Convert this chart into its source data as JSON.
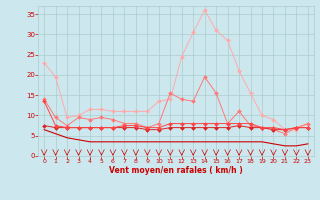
{
  "x": [
    0,
    1,
    2,
    3,
    4,
    5,
    6,
    7,
    8,
    9,
    10,
    11,
    12,
    13,
    14,
    15,
    16,
    17,
    18,
    19,
    20,
    21,
    22,
    23
  ],
  "series": [
    {
      "color": "#ffaaaa",
      "linewidth": 0.7,
      "markersize": 2.0,
      "values": [
        23,
        19.5,
        9.5,
        10,
        11.5,
        11.5,
        11,
        11,
        11,
        11,
        13.5,
        14,
        24.5,
        30.5,
        36,
        31,
        28.5,
        21,
        15.5,
        10,
        9,
        6.5,
        6.5,
        8
      ]
    },
    {
      "color": "#ff7777",
      "linewidth": 0.7,
      "markersize": 2.0,
      "values": [
        14,
        9.5,
        7.5,
        9.5,
        9,
        9.5,
        9,
        8,
        8,
        7,
        8,
        15.5,
        14,
        13.5,
        19.5,
        15.5,
        8,
        11,
        7.5,
        7,
        6.5,
        5.5,
        7,
        8
      ]
    },
    {
      "color": "#dd2222",
      "linewidth": 0.7,
      "markersize": 2.0,
      "values": [
        7.5,
        7,
        7,
        7,
        7,
        7,
        7,
        7,
        7,
        6.5,
        6.5,
        7,
        7,
        7,
        7,
        7,
        7,
        7.5,
        7,
        7,
        6.5,
        6.5,
        7,
        7
      ]
    },
    {
      "color": "#ff4444",
      "linewidth": 0.7,
      "markersize": 2.0,
      "values": [
        13.5,
        7.5,
        7,
        7,
        7,
        7,
        7,
        7.5,
        7.5,
        7,
        7,
        8,
        8,
        8,
        8,
        8,
        8,
        8,
        8,
        7,
        7,
        6.5,
        7,
        7
      ]
    },
    {
      "color": "#cc0000",
      "linewidth": 0.8,
      "markersize": 0,
      "values": [
        6.5,
        5.5,
        4.5,
        4,
        3.5,
        3.5,
        3.5,
        3.5,
        3.5,
        3.5,
        3.5,
        3.5,
        3.5,
        3.5,
        3.5,
        3.5,
        3.5,
        3.5,
        3.5,
        3.5,
        3.0,
        2.5,
        2.5,
        3.0
      ]
    }
  ],
  "ylim": [
    0,
    37
  ],
  "xlim": [
    -0.5,
    23.5
  ],
  "yticks": [
    0,
    5,
    10,
    15,
    20,
    25,
    30,
    35
  ],
  "xticks": [
    0,
    1,
    2,
    3,
    4,
    5,
    6,
    7,
    8,
    9,
    10,
    11,
    12,
    13,
    14,
    15,
    16,
    17,
    18,
    19,
    20,
    21,
    22,
    23
  ],
  "xlabel": "Vent moyen/en rafales ( km/h )",
  "background_color": "#cce8ee",
  "grid_color": "#aacccc",
  "tick_color": "#cc0000",
  "label_color": "#cc0000"
}
